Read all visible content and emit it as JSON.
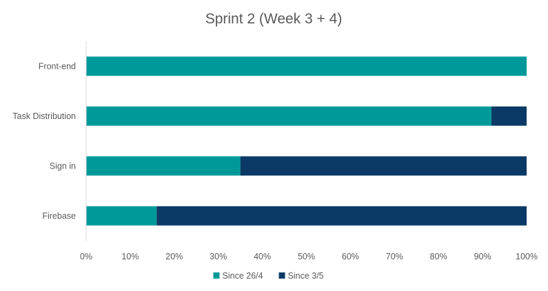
{
  "chart_data": {
    "type": "bar",
    "orientation": "horizontal",
    "stacked": "percent",
    "title": "Sprint 2 (Week 3 + 4)",
    "categories": [
      "Front-end",
      "Task Distribution",
      "Sign in",
      "Firebase"
    ],
    "series": [
      {
        "name": "Since 26/4",
        "color": "#00999a",
        "values": [
          100,
          92,
          35,
          16
        ]
      },
      {
        "name": "Since 3/5",
        "color": "#0b3a66",
        "values": [
          0,
          8,
          65,
          84
        ]
      }
    ],
    "xlim": [
      0,
      100
    ],
    "x_ticks": [
      "0%",
      "10%",
      "20%",
      "30%",
      "40%",
      "50%",
      "60%",
      "70%",
      "80%",
      "90%",
      "100%"
    ],
    "grid": false,
    "legend_position": "bottom"
  }
}
